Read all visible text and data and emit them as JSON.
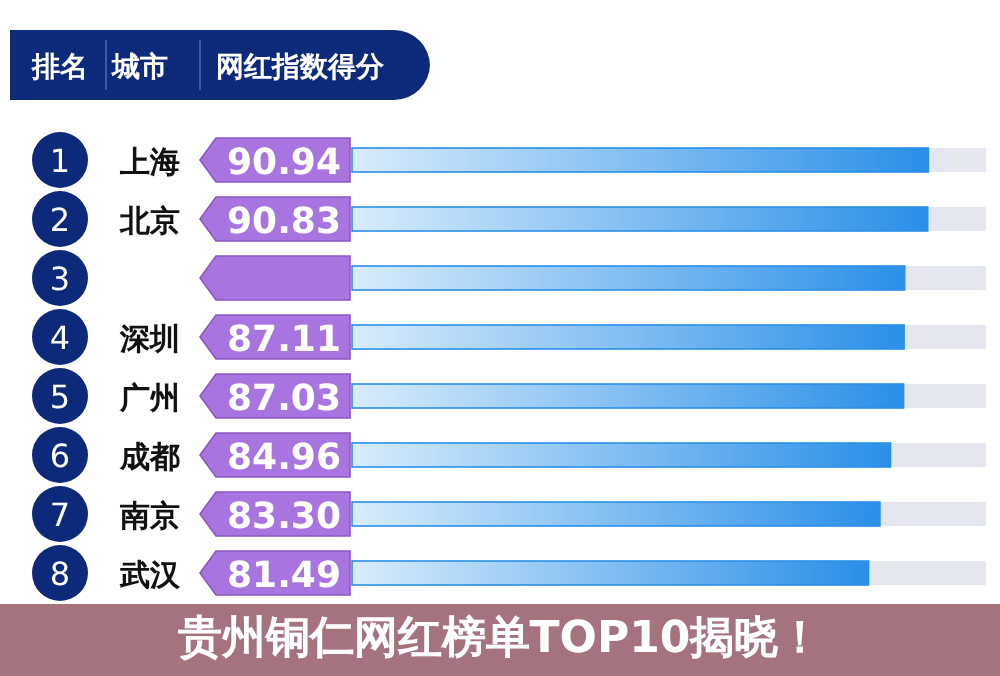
{
  "chart_data": {
    "type": "bar",
    "orientation": "horizontal",
    "title": "贵州铜仁网红榜单TOP10揭晓！",
    "categories": [
      "上海",
      "北京",
      null,
      "深圳",
      "广州",
      "成都",
      "南京",
      "武汉"
    ],
    "values": [
      90.94,
      90.83,
      87.2,
      87.11,
      87.03,
      84.96,
      83.3,
      81.49
    ],
    "value_labels": [
      "90.94",
      "90.83",
      null,
      "87.11",
      "87.03",
      "84.96",
      "83.30",
      "81.49"
    ],
    "color": "#2a8fe8",
    "annotations": [
      "排名",
      "城市",
      "网红指数得分",
      "1",
      "2",
      "3",
      "4",
      "5",
      "6",
      "7",
      "8"
    ]
  }
}
